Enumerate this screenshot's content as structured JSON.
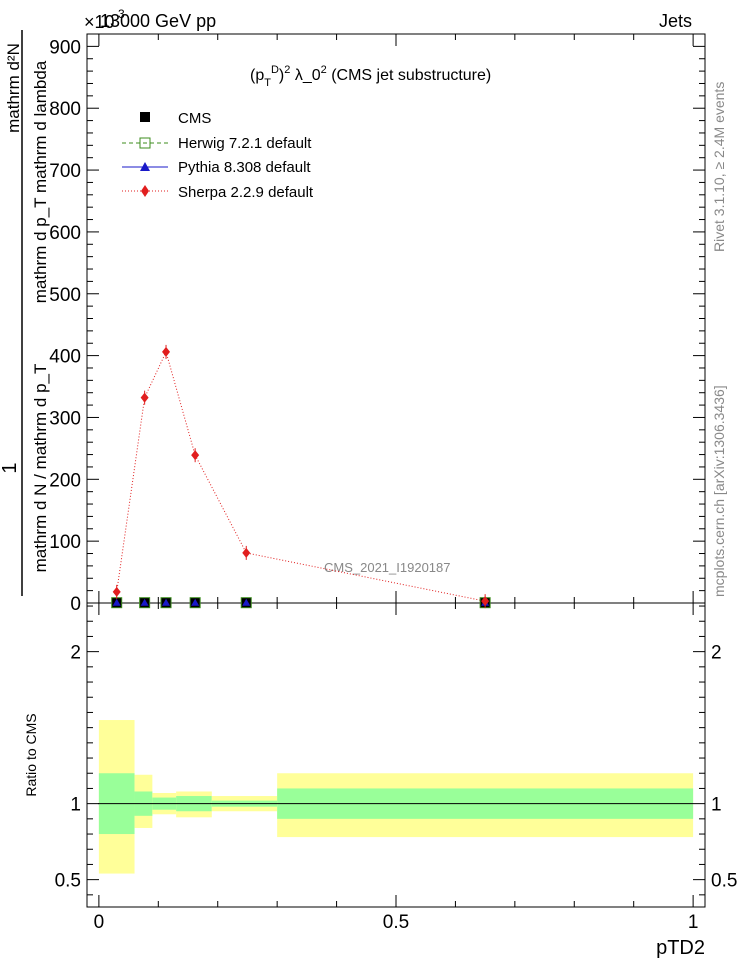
{
  "header": {
    "left": "13000 GeV pp",
    "right": "Jets",
    "exponent": "×10",
    "exponent_power": "-3"
  },
  "side_labels": {
    "rivet": "Rivet 3.1.10, ≥ 2.4M events",
    "mcplots": "mcplots.cern.ch [arXiv:1306.3436]"
  },
  "plot_title": "(p_T^D)^2 λ_0^2 (CMS jet substructure)",
  "analysis_label": "CMS_2021_I1920187",
  "y_label_main": {
    "numerator": "1",
    "top": "mathrm d²N",
    "top_denominator": "mathrm d p_T mathrm d lambda",
    "denominator": "mathrm d N / mathrm d p_T"
  },
  "y_label_ratio": "Ratio to CMS",
  "x_label": "pTD2",
  "legend": [
    {
      "label": "CMS",
      "marker": "filled-square",
      "color": "#000000"
    },
    {
      "label": "Herwig 7.2.1 default",
      "marker": "open-square",
      "color": "#3c8c1e",
      "dash": true
    },
    {
      "label": "Pythia 8.308 default",
      "marker": "triangle",
      "color": "#1919c8"
    },
    {
      "label": "Sherpa 2.2.9 default",
      "marker": "diamond",
      "color": "#e11e1e",
      "dotted": true
    }
  ],
  "chart_data": [
    {
      "type": "line",
      "panel": "main",
      "xlim": [
        -0.02,
        1.02
      ],
      "ylim": [
        0,
        920
      ],
      "y_ticks": [
        0,
        100,
        200,
        300,
        400,
        500,
        600,
        700,
        800,
        900
      ],
      "y_tick_labels": [
        "0",
        "100",
        "200",
        "300",
        "400",
        "500",
        "600",
        "700",
        "800",
        "900"
      ],
      "series": [
        {
          "name": "CMS",
          "x": [
            0.03,
            0.077,
            0.113,
            0.162,
            0.248,
            0.65
          ],
          "values": [
            0.5,
            0.5,
            0.5,
            0.5,
            0.5,
            0.5
          ]
        },
        {
          "name": "Herwig 7.2.1 default",
          "x": [
            0.03,
            0.077,
            0.113,
            0.162,
            0.248,
            0.65
          ],
          "values": [
            0.5,
            0.5,
            0.5,
            0.5,
            0.5,
            0.5
          ]
        },
        {
          "name": "Pythia 8.308 default",
          "x": [
            0.03,
            0.077,
            0.113,
            0.162,
            0.248,
            0.65
          ],
          "values": [
            0.5,
            0.5,
            0.5,
            0.5,
            0.5,
            0.5
          ]
        },
        {
          "name": "Sherpa 2.2.9 default",
          "x": [
            0.03,
            0.077,
            0.113,
            0.162,
            0.248,
            0.65
          ],
          "values": [
            18,
            332,
            406,
            239,
            81,
            3
          ]
        }
      ]
    },
    {
      "type": "area",
      "panel": "ratio",
      "xlim": [
        -0.02,
        1.02
      ],
      "ylim": [
        0.32,
        2.32
      ],
      "y_ticks": [
        0.5,
        1,
        2
      ],
      "y_tick_labels": [
        "0.5",
        "1",
        "2"
      ],
      "x_ticks": [
        0,
        0.5,
        1
      ],
      "x_tick_labels": [
        "0",
        "0.5",
        "1"
      ],
      "bins": [
        {
          "lo": 0.0,
          "hi": 0.06,
          "inner": [
            0.8,
            1.2
          ],
          "outer": [
            0.54,
            1.55
          ]
        },
        {
          "lo": 0.06,
          "hi": 0.09,
          "inner": [
            0.92,
            1.08
          ],
          "outer": [
            0.84,
            1.19
          ]
        },
        {
          "lo": 0.09,
          "hi": 0.13,
          "inner": [
            0.96,
            1.04
          ],
          "outer": [
            0.93,
            1.07
          ]
        },
        {
          "lo": 0.13,
          "hi": 0.19,
          "inner": [
            0.95,
            1.05
          ],
          "outer": [
            0.91,
            1.08
          ]
        },
        {
          "lo": 0.19,
          "hi": 0.3,
          "inner": [
            0.98,
            1.02
          ],
          "outer": [
            0.95,
            1.05
          ]
        },
        {
          "lo": 0.3,
          "hi": 1.0,
          "inner": [
            0.9,
            1.1
          ],
          "outer": [
            0.78,
            1.2
          ]
        }
      ]
    }
  ]
}
